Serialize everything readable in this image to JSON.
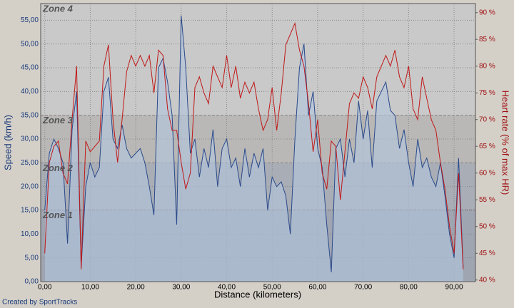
{
  "chart_data": {
    "type": "line",
    "x_label": "Distance (kilometers)",
    "y_label": "Speed (km/h)",
    "y2_label": "Heart rate (% of max HR)",
    "footer": "Created by SportTracks",
    "xlim": [
      -0.9,
      94.7
    ],
    "ylim": [
      0,
      58.5
    ],
    "y2lim": [
      39.7,
      91.7
    ],
    "xticks": [
      {
        "value": 0,
        "label": "0,00"
      },
      {
        "value": 10,
        "label": "10,00"
      },
      {
        "value": 20,
        "label": "20,00"
      },
      {
        "value": 30,
        "label": "30,00"
      },
      {
        "value": 40,
        "label": "40,00"
      },
      {
        "value": 50,
        "label": "50,00"
      },
      {
        "value": 60,
        "label": "60,00"
      },
      {
        "value": 70,
        "label": "70,00"
      },
      {
        "value": 80,
        "label": "80,00"
      },
      {
        "value": 90,
        "label": "90,00"
      }
    ],
    "yticks": [
      {
        "value": 0,
        "label": "0,00"
      },
      {
        "value": 5,
        "label": "5,00"
      },
      {
        "value": 10,
        "label": "10,00"
      },
      {
        "value": 15,
        "label": "15,00"
      },
      {
        "value": 20,
        "label": "20,00"
      },
      {
        "value": 25,
        "label": "25,00"
      },
      {
        "value": 30,
        "label": "30,00"
      },
      {
        "value": 35,
        "label": "35,00"
      },
      {
        "value": 40,
        "label": "40,00"
      },
      {
        "value": 45,
        "label": "45,00"
      },
      {
        "value": 50,
        "label": "50,00"
      },
      {
        "value": 55,
        "label": "55,00"
      }
    ],
    "y2ticks": [
      {
        "value": 40,
        "label": "40 %"
      },
      {
        "value": 45,
        "label": "45 %"
      },
      {
        "value": 50,
        "label": "50 %"
      },
      {
        "value": 55,
        "label": "55 %"
      },
      {
        "value": 60,
        "label": "60 %"
      },
      {
        "value": 65,
        "label": "65 %"
      },
      {
        "value": 70,
        "label": "70 %"
      },
      {
        "value": 75,
        "label": "75 %"
      },
      {
        "value": 80,
        "label": "80 %"
      },
      {
        "value": 85,
        "label": "85 %"
      },
      {
        "value": 90,
        "label": "90 %"
      }
    ],
    "grid": true,
    "zones": [
      {
        "name": "Zone 4",
        "from": 70.8,
        "color": "#c9c9c9"
      },
      {
        "name": "Zone 3",
        "from": 61.9,
        "color": "#b9b8b6"
      },
      {
        "name": "Zone 2",
        "from": 53.1,
        "color": "#a9adb5"
      },
      {
        "name": "Zone 1",
        "color": "#9fa5b1"
      }
    ],
    "x": [
      0,
      1,
      2,
      3,
      4,
      5,
      6,
      7,
      8,
      9,
      10,
      11,
      12,
      13,
      14,
      15,
      16,
      17,
      18,
      19,
      20,
      21,
      22,
      23,
      24,
      25,
      26,
      27,
      28,
      29,
      30,
      31,
      32,
      33,
      34,
      35,
      36,
      37,
      38,
      39,
      40,
      41,
      42,
      43,
      44,
      45,
      46,
      47,
      48,
      49,
      50,
      51,
      52,
      53,
      54,
      55,
      56,
      57,
      58,
      59,
      60,
      61,
      62,
      63,
      64,
      65,
      66,
      67,
      68,
      69,
      70,
      71,
      72,
      73,
      74,
      75,
      76,
      77,
      78,
      79,
      80,
      81,
      82,
      83,
      84,
      85,
      86,
      87,
      88,
      89,
      90,
      91,
      92
    ],
    "series": [
      {
        "name": "Speed",
        "color": "#2a4a8a",
        "fill": "#b4c6e0",
        "values": [
          15,
          27,
          30,
          28,
          25,
          8,
          32,
          40,
          3,
          20,
          25,
          22,
          24,
          40,
          43,
          30,
          28,
          33,
          28,
          26,
          27,
          28,
          25,
          20,
          14,
          45,
          47,
          42,
          35,
          12,
          56,
          45,
          27,
          30,
          22,
          28,
          24,
          32,
          20,
          28,
          30,
          24,
          26,
          20,
          28,
          22,
          27,
          24,
          28,
          15,
          22,
          20,
          21,
          18,
          10,
          30,
          45,
          50,
          35,
          40,
          28,
          24,
          12,
          2,
          28,
          30,
          22,
          30,
          25,
          38,
          30,
          36,
          24,
          38,
          40,
          42,
          36,
          35,
          28,
          32,
          25,
          20,
          30,
          24,
          26,
          22,
          20,
          25,
          18,
          10,
          5,
          26,
          3
        ]
      },
      {
        "name": "Heart rate",
        "color": "#c01818",
        "axis": "y2",
        "values": [
          45,
          62,
          65,
          66,
          60,
          58,
          70,
          80,
          42,
          66,
          64,
          65,
          66,
          80,
          84,
          70,
          62,
          70,
          79,
          82,
          80,
          82,
          80,
          82,
          75,
          83,
          82,
          72,
          68,
          68,
          62,
          57,
          60,
          76,
          78,
          75,
          73,
          80,
          78,
          76,
          82,
          76,
          80,
          74,
          77,
          75,
          77,
          72,
          68,
          70,
          76,
          68,
          75,
          84,
          86,
          88,
          83,
          80,
          73,
          64,
          70,
          60,
          57,
          66,
          65,
          55,
          64,
          73,
          75,
          74,
          78,
          76,
          72,
          78,
          80,
          82,
          80,
          83,
          78,
          76,
          80,
          72,
          70,
          78,
          74,
          70,
          68,
          62,
          57,
          50,
          45,
          60,
          42
        ]
      }
    ]
  }
}
